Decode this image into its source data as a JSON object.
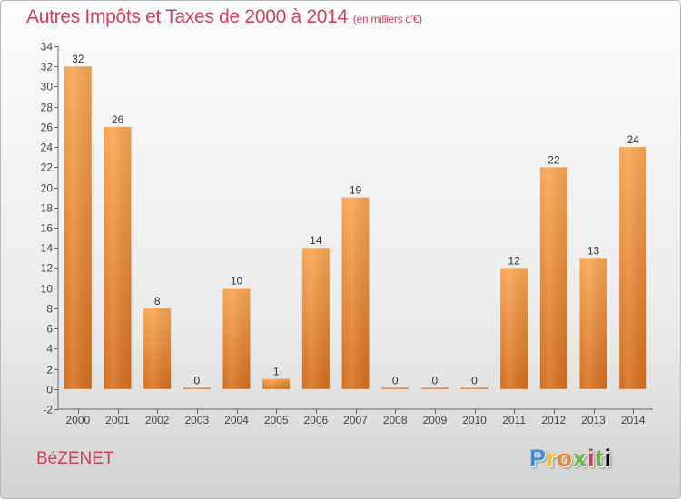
{
  "title": "Autres Impôts et Taxes de 2000 à 2014",
  "title_unit": "(en milliers d'€)",
  "commune": "BéZENET",
  "logo": {
    "letters": [
      "P",
      "r",
      "o",
      "x",
      "i",
      "t",
      "i"
    ]
  },
  "colors": {
    "bar_top": "#f5a24b",
    "bar_bottom": "#d76f1c",
    "title": "#d0415a",
    "axis": "#555555"
  },
  "chart_data": {
    "type": "bar",
    "title": "Autres Impôts et Taxes de 2000 à 2014",
    "ylabel": "",
    "xlabel": "",
    "ylim": [
      -2,
      34
    ],
    "yticks": [
      -2,
      0,
      2,
      4,
      6,
      8,
      10,
      12,
      14,
      16,
      18,
      20,
      22,
      24,
      26,
      28,
      30,
      32,
      34
    ],
    "categories": [
      "2000",
      "2001",
      "2002",
      "2003",
      "2004",
      "2005",
      "2006",
      "2007",
      "2008",
      "2009",
      "2010",
      "2011",
      "2012",
      "2013",
      "2014"
    ],
    "values": [
      32,
      26,
      8,
      0,
      10,
      1,
      14,
      19,
      0,
      0,
      0,
      12,
      22,
      13,
      24
    ],
    "grid": false
  }
}
